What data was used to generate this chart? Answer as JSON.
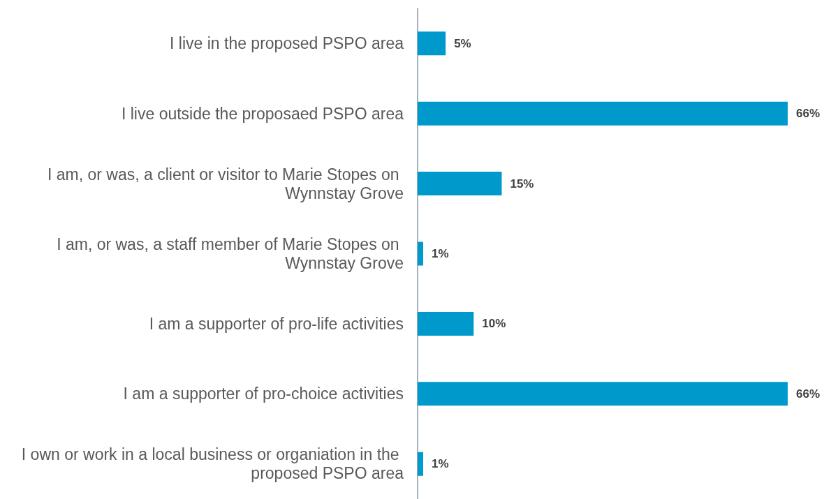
{
  "chart_data": {
    "type": "bar",
    "orientation": "horizontal",
    "categories": [
      "I live in the proposed PSPO area",
      "I live outside the proposaed PSPO area",
      "I am, or was, a client or visitor to Marie Stopes on Wynnstay Grove",
      "I am, or was, a staff member of Marie Stopes on Wynnstay Grove",
      "I am a supporter of pro-life activities",
      "I am a supporter of pro-choice activities",
      "I own or work in a local business or organiation in the proposed PSPO area"
    ],
    "values": [
      5,
      66,
      15,
      1,
      10,
      66,
      1
    ],
    "value_labels": [
      "5%",
      "66%",
      "15%",
      "1%",
      "10%",
      "66%",
      "1%"
    ],
    "color": "#0099cc"
  }
}
